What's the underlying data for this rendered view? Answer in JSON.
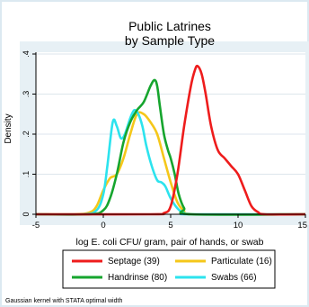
{
  "chart_data": {
    "type": "line",
    "title": [
      "Public Latrines",
      "by Sample Type"
    ],
    "xlabel": "log E. coli CFU/ gram, pair of hands, or swab",
    "ylabel": "Density",
    "xlim": [
      -5,
      15
    ],
    "ylim": [
      0,
      0.4
    ],
    "xticks": [
      -5,
      0,
      5,
      10,
      15
    ],
    "xtick_labels": [
      "-5",
      "0",
      "5",
      "10",
      "15"
    ],
    "yticks": [
      0,
      0.1,
      0.2,
      0.3,
      0.4
    ],
    "ytick_labels": [
      "0",
      ".1",
      ".2",
      ".3",
      ".4"
    ],
    "grid": true,
    "legend_position": "bottom",
    "note": "Gaussian kernel with STATA optimal width",
    "series": [
      {
        "name": "Septage (39)",
        "color": "#ee1c1c",
        "x": [
          -5,
          3.5,
          4.5,
          5.0,
          5.5,
          6.0,
          6.5,
          6.8,
          7.0,
          7.3,
          7.6,
          8.0,
          8.5,
          9.0,
          9.5,
          10.0,
          10.5,
          11.0,
          11.5,
          12.0,
          15
        ],
        "y": [
          0,
          0,
          0.003,
          0.02,
          0.1,
          0.22,
          0.32,
          0.36,
          0.37,
          0.35,
          0.3,
          0.22,
          0.16,
          0.14,
          0.12,
          0.1,
          0.06,
          0.02,
          0.005,
          0,
          0
        ]
      },
      {
        "name": "Particulate (16)",
        "color": "#f5c71a",
        "x": [
          -5,
          -2.0,
          -1.0,
          -0.5,
          0.0,
          0.5,
          1.0,
          1.5,
          2.0,
          2.5,
          3.0,
          3.5,
          4.0,
          4.5,
          5.0,
          5.5,
          6.0,
          6.5,
          15
        ],
        "y": [
          0,
          0,
          0.005,
          0.02,
          0.06,
          0.09,
          0.1,
          0.14,
          0.2,
          0.25,
          0.25,
          0.23,
          0.2,
          0.14,
          0.08,
          0.03,
          0.008,
          0,
          0
        ]
      },
      {
        "name": "Handrinse (80)",
        "color": "#16a52e",
        "x": [
          -5,
          -1.0,
          0.0,
          0.5,
          1.0,
          1.5,
          2.0,
          2.5,
          3.0,
          3.5,
          3.8,
          4.0,
          4.2,
          4.5,
          4.8,
          5.0,
          5.3,
          5.6,
          6.0,
          6.5,
          15
        ],
        "y": [
          0,
          0,
          0.01,
          0.04,
          0.1,
          0.18,
          0.23,
          0.26,
          0.28,
          0.32,
          0.335,
          0.32,
          0.27,
          0.2,
          0.16,
          0.14,
          0.1,
          0.05,
          0.015,
          0,
          0
        ]
      },
      {
        "name": "Swabs (66)",
        "color": "#2ce3ee",
        "x": [
          -5,
          -1.5,
          -0.5,
          0.0,
          0.3,
          0.7,
          1.0,
          1.3,
          1.6,
          2.0,
          2.3,
          2.6,
          2.9,
          3.2,
          3.6,
          4.0,
          4.3,
          4.6,
          5.0,
          5.5,
          6.0,
          6.5,
          15
        ],
        "y": [
          0,
          0,
          0.01,
          0.05,
          0.12,
          0.23,
          0.22,
          0.19,
          0.2,
          0.24,
          0.26,
          0.25,
          0.22,
          0.17,
          0.12,
          0.085,
          0.08,
          0.07,
          0.04,
          0.015,
          0.003,
          0,
          0
        ]
      }
    ]
  }
}
